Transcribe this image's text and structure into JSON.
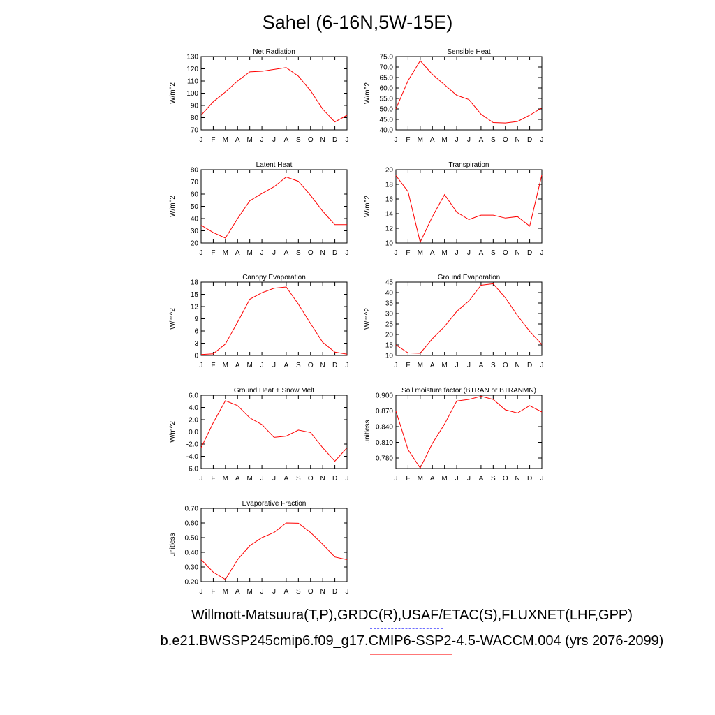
{
  "title": "Sahel (6-16N,5W-15E)",
  "footer": {
    "obs": "Willmott-Matsuura(T,P),GRDC(R),USAF/ETAC(S),FLUXNET(LHF,GPP)",
    "model": "b.e21.BWSSP245cmip6.f09_g17.CMIP6-SSP2-4.5-WACCM.004 (yrs 2076-2099)"
  },
  "colors": {
    "line": "#ff0000",
    "obs_legend": "#6f6fff",
    "model_legend": "#ff7777"
  },
  "chart_data": [
    {
      "type": "line",
      "title": "Net Radiation",
      "ylabel": "W/m^2",
      "categories": [
        "J",
        "F",
        "M",
        "A",
        "M",
        "J",
        "J",
        "A",
        "S",
        "O",
        "N",
        "D",
        "J"
      ],
      "ylim": [
        70,
        130
      ],
      "yticks": [
        70,
        80,
        90,
        100,
        110,
        120,
        130
      ],
      "ytick_labels": [
        "70",
        "80",
        "90",
        "100",
        "110",
        "120",
        "130"
      ],
      "values": [
        82,
        93,
        101,
        110,
        117.5,
        118,
        119.5,
        121,
        114,
        102,
        87,
        76.5,
        82
      ]
    },
    {
      "type": "line",
      "title": "Sensible Heat",
      "ylabel": "W/m^2",
      "categories": [
        "J",
        "F",
        "M",
        "A",
        "M",
        "J",
        "J",
        "A",
        "S",
        "O",
        "N",
        "D",
        "J"
      ],
      "ylim": [
        40,
        75
      ],
      "yticks": [
        40,
        45,
        50,
        55,
        60,
        65,
        70,
        75
      ],
      "ytick_labels": [
        "40.0",
        "45.0",
        "50.0",
        "55.0",
        "60.0",
        "65.0",
        "70.0",
        "75.0"
      ],
      "values": [
        50,
        63.5,
        73,
        66.5,
        61.5,
        56.5,
        54.5,
        47.5,
        43.5,
        43.3,
        44,
        47,
        50.5
      ]
    },
    {
      "type": "line",
      "title": "Latent Heat",
      "ylabel": "W/m^2",
      "categories": [
        "J",
        "F",
        "M",
        "A",
        "M",
        "J",
        "J",
        "A",
        "S",
        "O",
        "N",
        "D",
        "J"
      ],
      "ylim": [
        20,
        80
      ],
      "yticks": [
        20,
        30,
        40,
        50,
        60,
        70,
        80
      ],
      "ytick_labels": [
        "20",
        "30",
        "40",
        "50",
        "60",
        "70",
        "80"
      ],
      "values": [
        34.5,
        28.5,
        24,
        40,
        54.5,
        60.5,
        66,
        74,
        70.5,
        59,
        46,
        35,
        35
      ]
    },
    {
      "type": "line",
      "title": "Transpiration",
      "ylabel": "W/m^2",
      "categories": [
        "J",
        "F",
        "M",
        "A",
        "M",
        "J",
        "J",
        "A",
        "S",
        "O",
        "N",
        "D",
        "J"
      ],
      "ylim": [
        10,
        20
      ],
      "yticks": [
        10,
        12,
        14,
        16,
        18,
        20
      ],
      "ytick_labels": [
        "10",
        "12",
        "14",
        "16",
        "18",
        "20"
      ],
      "values": [
        19.2,
        17,
        10.1,
        13.6,
        16.6,
        14.2,
        13.2,
        13.8,
        13.8,
        13.4,
        13.6,
        12.3,
        19.3
      ]
    },
    {
      "type": "line",
      "title": "Canopy Evaporation",
      "ylabel": "W/m^2",
      "categories": [
        "J",
        "F",
        "M",
        "A",
        "M",
        "J",
        "J",
        "A",
        "S",
        "O",
        "N",
        "D",
        "J"
      ],
      "ylim": [
        0,
        18
      ],
      "yticks": [
        0,
        3,
        6,
        9,
        12,
        15,
        18
      ],
      "ytick_labels": [
        "0",
        "3",
        "6",
        "9",
        "12",
        "15",
        "18"
      ],
      "values": [
        0.2,
        0.4,
        2.8,
        8.2,
        13.8,
        15.4,
        16.5,
        16.8,
        12.6,
        7.8,
        3.2,
        0.8,
        0.3
      ]
    },
    {
      "type": "line",
      "title": "Ground Evaporation",
      "ylabel": "W/m^2",
      "categories": [
        "J",
        "F",
        "M",
        "A",
        "M",
        "J",
        "J",
        "A",
        "S",
        "O",
        "N",
        "D",
        "J"
      ],
      "ylim": [
        10,
        45
      ],
      "yticks": [
        10,
        15,
        20,
        25,
        30,
        35,
        40,
        45
      ],
      "ytick_labels": [
        "10",
        "15",
        "20",
        "25",
        "30",
        "35",
        "40",
        "45"
      ],
      "values": [
        15,
        11.2,
        11,
        18,
        23.8,
        31,
        36,
        43.5,
        44.2,
        37.5,
        29,
        21.5,
        15.2
      ]
    },
    {
      "type": "line",
      "title": "Ground Heat + Snow Melt",
      "ylabel": "W/m^2",
      "categories": [
        "J",
        "F",
        "M",
        "A",
        "M",
        "J",
        "J",
        "A",
        "S",
        "O",
        "N",
        "D",
        "J"
      ],
      "ylim": [
        -6,
        6
      ],
      "yticks": [
        -6,
        -4,
        -2,
        0,
        2,
        4,
        6
      ],
      "ytick_labels": [
        "-6.0",
        "-4.0",
        "-2.0",
        "0.0",
        "2.0",
        "4.0",
        "6.0"
      ],
      "values": [
        -2.6,
        1.5,
        5.1,
        4.3,
        2.3,
        1.2,
        -0.9,
        -0.7,
        0.3,
        -0.1,
        -2.6,
        -4.8,
        -2.6
      ]
    },
    {
      "type": "line",
      "title": "Soil moisture factor (BTRAN or BTRANMN)",
      "ylabel": "unitless",
      "categories": [
        "J",
        "F",
        "M",
        "A",
        "M",
        "J",
        "J",
        "A",
        "S",
        "O",
        "N",
        "D",
        "J"
      ],
      "ylim": [
        0.76,
        0.9
      ],
      "yticks": [
        0.78,
        0.81,
        0.84,
        0.87,
        0.9
      ],
      "ytick_labels": [
        "0.780",
        "0.810",
        "0.840",
        "0.870",
        "0.900"
      ],
      "values": [
        0.87,
        0.796,
        0.761,
        0.808,
        0.845,
        0.889,
        0.892,
        0.898,
        0.892,
        0.872,
        0.866,
        0.88,
        0.868
      ]
    },
    {
      "type": "line",
      "title": "Evaporative Fraction",
      "ylabel": "unitless",
      "categories": [
        "J",
        "F",
        "M",
        "A",
        "M",
        "J",
        "J",
        "A",
        "S",
        "O",
        "N",
        "D",
        "J"
      ],
      "ylim": [
        0.2,
        0.7
      ],
      "yticks": [
        0.2,
        0.3,
        0.4,
        0.5,
        0.6,
        0.7
      ],
      "ytick_labels": [
        "0.20",
        "0.30",
        "0.40",
        "0.50",
        "0.60",
        "0.70"
      ],
      "values": [
        0.35,
        0.265,
        0.215,
        0.35,
        0.445,
        0.5,
        0.535,
        0.6,
        0.598,
        0.535,
        0.455,
        0.368,
        0.35
      ]
    }
  ]
}
